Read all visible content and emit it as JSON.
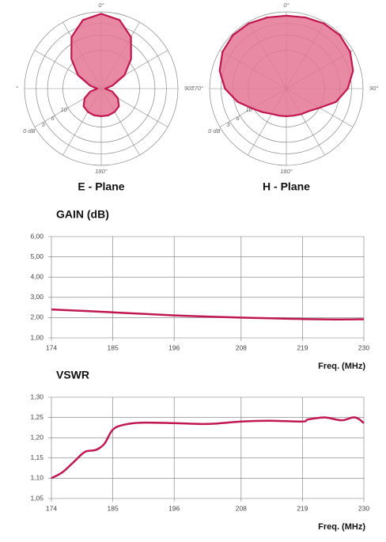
{
  "chart_data": [
    {
      "type": "polar",
      "title": "E - Plane",
      "color": "#c0174e",
      "fill": "#e57595",
      "rlim": [
        20,
        0
      ],
      "rticks": [
        10,
        6,
        3,
        {
          "value": 0,
          "label": "0 dB"
        }
      ],
      "angleticks": [
        {
          "value": 0,
          "label": "0°"
        },
        {
          "value": 90,
          "label": "90°"
        },
        {
          "value": 180,
          "label": "180°"
        },
        {
          "value": 270,
          "label": "°"
        }
      ],
      "angles": [
        0,
        15,
        30,
        45,
        60,
        75,
        90,
        105,
        120,
        135,
        150,
        165,
        180,
        195,
        210,
        225,
        240,
        255,
        270,
        285,
        300,
        315,
        330,
        345
      ],
      "values": [
        0.5,
        1.5,
        4.5,
        9,
        13,
        17,
        19,
        17,
        15,
        13.5,
        13,
        12.8,
        12.8,
        12.8,
        13,
        13.5,
        15,
        17,
        19,
        17,
        13,
        9,
        4.5,
        1.5
      ]
    },
    {
      "type": "polar",
      "title": "H - Plane",
      "color": "#c0174e",
      "fill": "#e57595",
      "rlim": [
        20,
        0
      ],
      "rticks": [
        10,
        6,
        3,
        {
          "value": 0,
          "label": "0 dB"
        }
      ],
      "angleticks": [
        {
          "value": 0,
          "label": "0°"
        },
        {
          "value": 90,
          "label": "90°"
        },
        {
          "value": 180,
          "label": "180°"
        },
        {
          "value": 270,
          "label": "270°"
        }
      ],
      "angles": [
        0,
        15,
        30,
        45,
        60,
        75,
        90,
        105,
        120,
        135,
        150,
        165,
        180,
        195,
        210,
        225,
        240,
        255,
        270,
        285,
        300,
        315,
        330,
        345
      ],
      "values": [
        1,
        0.8,
        0.4,
        0.3,
        0.8,
        2,
        4,
        6.6,
        10,
        11.7,
        12.3,
        12.7,
        12.8,
        12.7,
        12.4,
        11.3,
        9.7,
        6.8,
        4,
        2,
        0.8,
        0.3,
        0.4,
        0.8
      ]
    },
    {
      "type": "line",
      "title": "GAIN (dB)",
      "x_label": "Freq. (MHz)",
      "color": "#c0174e",
      "grid": true,
      "xlim": [
        174,
        230
      ],
      "xticks": [
        174,
        185,
        196,
        208,
        219,
        230
      ],
      "ylim": [
        1,
        6
      ],
      "yticks": [
        {
          "value": 1,
          "label": "1,00"
        },
        {
          "value": 2,
          "label": "2,00"
        },
        {
          "value": 3,
          "label": "3,00"
        },
        {
          "value": 4,
          "label": "4,00"
        },
        {
          "value": 5,
          "label": "5,00"
        },
        {
          "value": 6,
          "label": "6,00"
        }
      ],
      "x": [
        174,
        180,
        185,
        190,
        196,
        202,
        208,
        214,
        219,
        225,
        230
      ],
      "values": [
        2.4,
        2.33,
        2.26,
        2.19,
        2.11,
        2.05,
        2.0,
        1.96,
        1.93,
        1.91,
        1.92
      ]
    },
    {
      "type": "line",
      "title": "VSWR",
      "x_label": "Freq. (MHz)",
      "color": "#c0174e",
      "grid": true,
      "xlim": [
        174,
        230
      ],
      "xticks": [
        174,
        185,
        196,
        208,
        219,
        230
      ],
      "ylim": [
        1.05,
        1.3
      ],
      "yticks": [
        {
          "value": 1.05,
          "label": "1,05"
        },
        {
          "value": 1.1,
          "label": "1,10"
        },
        {
          "value": 1.15,
          "label": "1,15"
        },
        {
          "value": 1.2,
          "label": "1,20"
        },
        {
          "value": 1.25,
          "label": "1,25"
        },
        {
          "value": 1.3,
          "label": "1,30"
        }
      ],
      "x": [
        174,
        176,
        178,
        180,
        182,
        183.5,
        185,
        187,
        190,
        196,
        202,
        208,
        213,
        219,
        220,
        223,
        226,
        228,
        229,
        230
      ],
      "values": [
        1.1,
        1.115,
        1.14,
        1.165,
        1.17,
        1.185,
        1.22,
        1.232,
        1.237,
        1.236,
        1.234,
        1.24,
        1.242,
        1.24,
        1.245,
        1.25,
        1.243,
        1.25,
        1.247,
        1.236
      ]
    }
  ]
}
